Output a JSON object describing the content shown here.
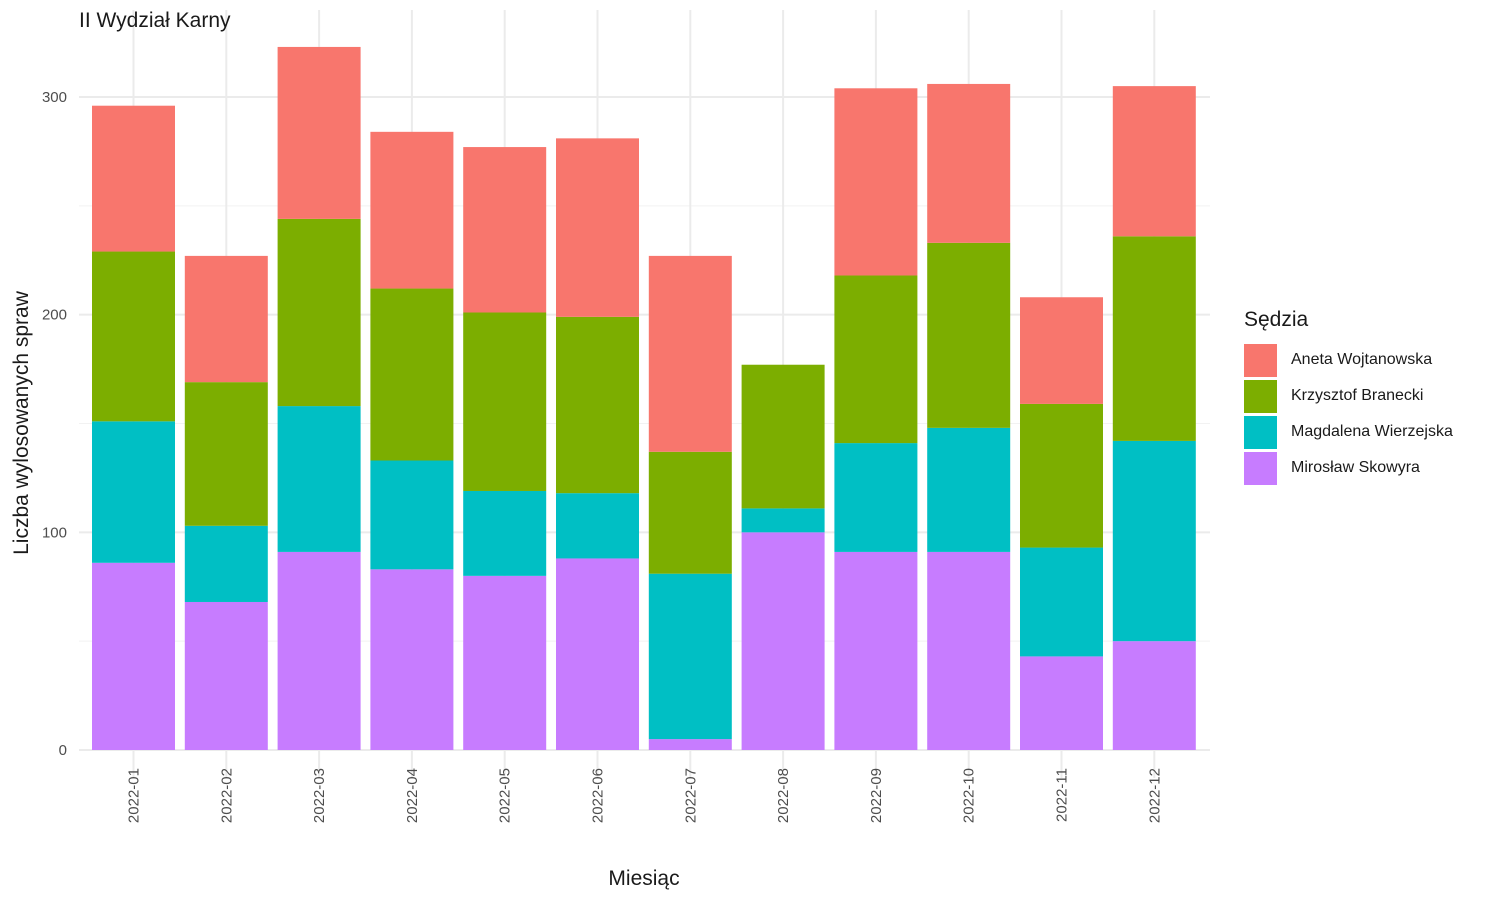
{
  "chart_data": {
    "type": "bar",
    "stacked": true,
    "title": "II Wydział Karny",
    "xlabel": "Miesiąc",
    "ylabel": "Liczba wylosowanych spraw",
    "ylim": [
      0,
      325
    ],
    "yticks": [
      0,
      100,
      200,
      300
    ],
    "grid": true,
    "legend_title": "Sędzia",
    "legend_position": "right",
    "categories": [
      "2022-01",
      "2022-02",
      "2022-03",
      "2022-04",
      "2022-05",
      "2022-06",
      "2022-07",
      "2022-08",
      "2022-09",
      "2022-10",
      "2022-11",
      "2022-12"
    ],
    "series": [
      {
        "name": "Mirosław Skowyra",
        "color": "#C77CFF",
        "values": [
          86,
          68,
          91,
          83,
          80,
          88,
          5,
          100,
          91,
          91,
          43,
          50
        ]
      },
      {
        "name": "Magdalena Wierzejska",
        "color": "#00BFC4",
        "values": [
          65,
          35,
          67,
          50,
          39,
          30,
          76,
          11,
          50,
          57,
          50,
          92
        ]
      },
      {
        "name": "Krzysztof Branecki",
        "color": "#7CAE00",
        "values": [
          78,
          66,
          86,
          79,
          82,
          81,
          56,
          66,
          77,
          85,
          66,
          94
        ]
      },
      {
        "name": "Aneta Wojtanowska",
        "color": "#F8766D",
        "values": [
          67,
          58,
          79,
          72,
          76,
          82,
          90,
          0,
          86,
          73,
          49,
          69
        ]
      }
    ],
    "legend_order": [
      "Aneta Wojtanowska",
      "Krzysztof Branecki",
      "Magdalena Wierzejska",
      "Mirosław Skowyra"
    ]
  }
}
